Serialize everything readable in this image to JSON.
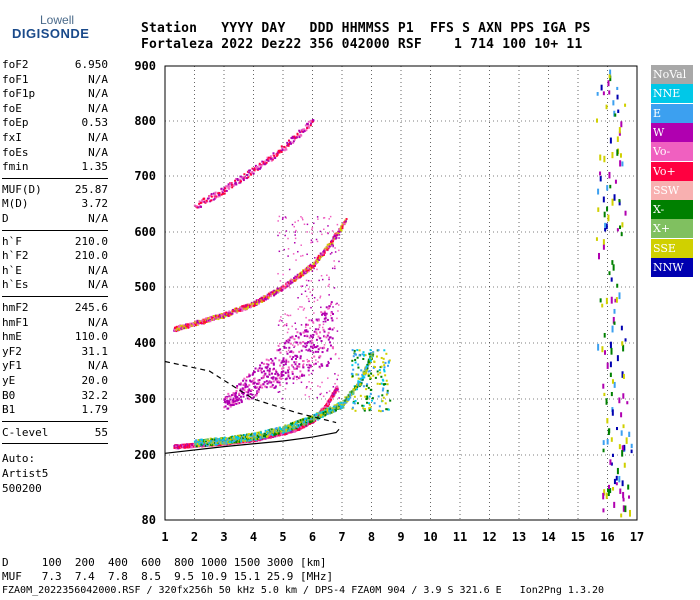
{
  "logo": {
    "line1": "Lowell",
    "line2": "DIGISONDE"
  },
  "header": {
    "labels": "Station   YYYY DAY   DDD HHMMSS P1  FFS S AXN PPS IGA PS",
    "values": "Fortaleza 2022 Dez22 356 042000 RSF    1 714 100 10+ 11"
  },
  "params": {
    "group1": [
      {
        "k": "foF2",
        "v": "6.950"
      },
      {
        "k": "foF1",
        "v": "N/A"
      },
      {
        "k": "foF1p",
        "v": "N/A"
      },
      {
        "k": "foE",
        "v": "N/A"
      },
      {
        "k": "foEp",
        "v": "0.53"
      },
      {
        "k": "fxI",
        "v": "N/A"
      },
      {
        "k": "foEs",
        "v": "N/A"
      },
      {
        "k": "fmin",
        "v": "1.35"
      }
    ],
    "group2": [
      {
        "k": "MUF(D)",
        "v": "25.87"
      },
      {
        "k": "M(D)",
        "v": "3.72"
      },
      {
        "k": "D",
        "v": "N/A"
      }
    ],
    "group3": [
      {
        "k": "h`F",
        "v": "210.0"
      },
      {
        "k": "h`F2",
        "v": "210.0"
      },
      {
        "k": "h`E",
        "v": "N/A"
      },
      {
        "k": "h`Es",
        "v": "N/A"
      }
    ],
    "group4": [
      {
        "k": "hmF2",
        "v": "245.6"
      },
      {
        "k": "hmF1",
        "v": "N/A"
      },
      {
        "k": "hmE",
        "v": "110.0"
      },
      {
        "k": "yF2",
        "v": "31.1"
      },
      {
        "k": "yF1",
        "v": "N/A"
      },
      {
        "k": "yE",
        "v": "20.0"
      },
      {
        "k": "B0",
        "v": "32.2"
      },
      {
        "k": "B1",
        "v": "1.79"
      }
    ],
    "clevel": {
      "k": "C-level",
      "v": "55"
    },
    "auto": [
      "Auto:",
      "Artist5",
      "500200"
    ]
  },
  "legend": [
    {
      "label": "NoVal",
      "color": "#a8a8a8"
    },
    {
      "label": "NNE",
      "color": "#00c8e8"
    },
    {
      "label": "E",
      "color": "#3ca0f0"
    },
    {
      "label": "W",
      "color": "#b000b0"
    },
    {
      "label": "Vo-",
      "color": "#f060c0"
    },
    {
      "label": "Vo+",
      "color": "#ff0040"
    },
    {
      "label": "SSW",
      "color": "#f8b0b0"
    },
    {
      "label": "X-",
      "color": "#008000"
    },
    {
      "label": "X+",
      "color": "#80c060"
    },
    {
      "label": "SSE",
      "color": "#d0d000"
    },
    {
      "label": "NNW",
      "color": "#0000b0"
    }
  ],
  "footer": {
    "line1": "D     100  200  400  600  800 1000 1500 3000 [km]",
    "line2": "MUF   7.3  7.4  7.8  8.5  9.5 10.9 15.1 25.9 [MHz]",
    "line3": "FZA0M_2022356042000.RSF / 320fx256h 50 kHz 5.0 km / DPS-4 FZA0M 904 / 3.9 S 321.6 E   Ion2Png 1.3.20"
  },
  "chart_data": {
    "type": "scatter",
    "title": "",
    "xlabel": "",
    "ylabel": "",
    "xlim": [
      1,
      17
    ],
    "ylim": [
      80,
      900
    ],
    "x_ticks": [
      1,
      2,
      3,
      4,
      5,
      6,
      7,
      8,
      9,
      10,
      11,
      12,
      13,
      14,
      15,
      16,
      17
    ],
    "y_ticks": [
      80,
      200,
      300,
      400,
      500,
      600,
      700,
      800,
      900
    ],
    "grid": true,
    "legend_position": "right",
    "series": [
      {
        "name": "Vo-",
        "trace": "O-trace 1st hop",
        "points": [
          [
            1.3,
            215
          ],
          [
            2.0,
            218
          ],
          [
            3.0,
            222
          ],
          [
            4.0,
            228
          ],
          [
            5.0,
            240
          ],
          [
            5.5,
            248
          ],
          [
            6.0,
            262
          ],
          [
            6.4,
            285
          ],
          [
            6.8,
            320
          ]
        ]
      },
      {
        "name": "X-",
        "trace": "X-trace 1st hop",
        "points": [
          [
            2.0,
            220
          ],
          [
            3.0,
            225
          ],
          [
            4.0,
            232
          ],
          [
            5.0,
            245
          ],
          [
            6.0,
            265
          ],
          [
            7.0,
            290
          ],
          [
            7.6,
            330
          ],
          [
            8.0,
            380
          ]
        ]
      },
      {
        "name": "W",
        "trace": "2nd hop",
        "points": [
          [
            1.3,
            425
          ],
          [
            2.0,
            435
          ],
          [
            3.0,
            450
          ],
          [
            4.0,
            470
          ],
          [
            5.0,
            500
          ],
          [
            6.0,
            540
          ],
          [
            6.6,
            580
          ],
          [
            7.1,
            620
          ]
        ]
      },
      {
        "name": "W",
        "trace": "3rd hop",
        "points": [
          [
            2.0,
            645
          ],
          [
            3.0,
            675
          ],
          [
            4.0,
            710
          ],
          [
            5.0,
            750
          ],
          [
            6.0,
            800
          ]
        ]
      },
      {
        "name": "W",
        "trace": "spread F",
        "points": [
          [
            3.0,
            290
          ],
          [
            4.0,
            320
          ],
          [
            5.0,
            350
          ],
          [
            6.0,
            380
          ],
          [
            6.7,
            400
          ]
        ]
      },
      {
        "name": "NNW",
        "trace": "interference",
        "points": [
          [
            15.6,
            800
          ],
          [
            16.0,
            600
          ],
          [
            16.2,
            400
          ],
          [
            16.3,
            200
          ],
          [
            16.5,
            120
          ]
        ]
      },
      {
        "name": "",
        "trace": "profile solid",
        "points": [
          [
            1.0,
            203
          ],
          [
            3.0,
            215
          ],
          [
            5.0,
            225
          ],
          [
            6.0,
            232
          ],
          [
            6.8,
            240
          ],
          [
            6.9,
            246
          ]
        ]
      },
      {
        "name": "",
        "trace": "profile dashed",
        "points": [
          [
            1.0,
            367
          ],
          [
            2.5,
            350
          ],
          [
            4.0,
            300
          ],
          [
            5.5,
            275
          ],
          [
            6.8,
            258
          ]
        ]
      }
    ]
  }
}
